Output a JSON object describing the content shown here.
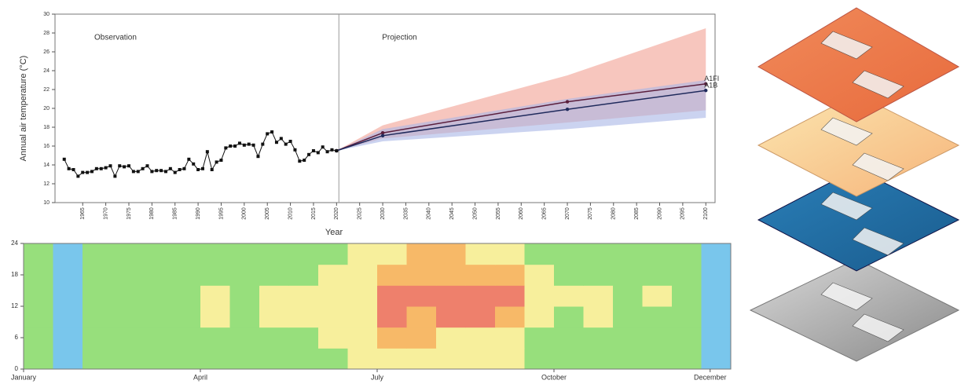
{
  "chart_data": [
    {
      "type": "line",
      "y_label": "Annual air temperature (°C)",
      "x_label": "Year",
      "annotations": [
        "Observation",
        "Projection"
      ],
      "color": "#111111",
      "x": [
        1961,
        1962,
        1963,
        1964,
        1965,
        1966,
        1967,
        1968,
        1969,
        1970,
        1971,
        1972,
        1973,
        1974,
        1975,
        1976,
        1977,
        1978,
        1979,
        1980,
        1981,
        1982,
        1983,
        1984,
        1985,
        1986,
        1987,
        1988,
        1989,
        1990,
        1991,
        1992,
        1993,
        1994,
        1995,
        1996,
        1997,
        1998,
        1999,
        2000,
        2001,
        2002,
        2003,
        2004,
        2005,
        2006,
        2007,
        2008,
        2009,
        2010,
        2011,
        2012,
        2013,
        2014,
        2015,
        2016,
        2017,
        2018,
        2019,
        2020
      ],
      "values": [
        14.6,
        13.6,
        13.5,
        12.8,
        13.2,
        13.2,
        13.3,
        13.6,
        13.6,
        13.7,
        13.9,
        12.8,
        13.9,
        13.8,
        13.9,
        13.3,
        13.3,
        13.6,
        13.9,
        13.3,
        13.4,
        13.4,
        13.3,
        13.6,
        13.2,
        13.5,
        13.6,
        14.6,
        14.1,
        13.5,
        13.6,
        15.4,
        13.5,
        14.3,
        14.5,
        15.8,
        16.0,
        16.0,
        16.3,
        16.1,
        16.2,
        16.1,
        14.9,
        16.2,
        17.3,
        17.5,
        16.4,
        16.8,
        16.2,
        16.5,
        15.6,
        14.4,
        14.5,
        15.1,
        15.5,
        15.3,
        15.9,
        15.4,
        15.6,
        15.5
      ],
      "series": [
        {
          "name": "A1FI",
          "color": "#5a1e3c",
          "band_color": "#f2a092",
          "x": [
            2020,
            2030,
            2070,
            2100
          ],
          "values": [
            15.5,
            17.4,
            20.7,
            22.6
          ],
          "lower": [
            15.5,
            16.8,
            18.5,
            19.8
          ],
          "upper": [
            15.5,
            18.2,
            23.5,
            28.5
          ]
        },
        {
          "name": "A1B",
          "color": "#1f2a5c",
          "band_color": "#a8b6e6",
          "x": [
            2020,
            2030,
            2070,
            2100
          ],
          "values": [
            15.5,
            17.1,
            19.9,
            21.9
          ],
          "lower": [
            15.5,
            16.5,
            17.8,
            19.0
          ],
          "upper": [
            15.5,
            17.8,
            21.0,
            23.0
          ]
        }
      ],
      "xlim": [
        1959,
        2102
      ],
      "xticks": [
        1965,
        1970,
        1975,
        1980,
        1985,
        1990,
        1995,
        2000,
        2005,
        2010,
        2015,
        2020,
        2025,
        2030,
        2035,
        2040,
        2045,
        2050,
        2055,
        2060,
        2065,
        2070,
        2075,
        2080,
        2085,
        2090,
        2095,
        2100
      ],
      "ylim": [
        10,
        30
      ],
      "yticks": [
        10,
        12,
        14,
        16,
        18,
        20,
        22,
        24,
        26,
        28,
        30
      ]
    },
    {
      "type": "heatmap",
      "colors": [
        "#79c6ec",
        "#97df7c",
        "#f7ef9c",
        "#f7b968",
        "#ee806c"
      ],
      "values": [
        [
          1,
          0,
          1,
          1,
          1,
          1,
          1,
          1,
          1,
          1,
          1,
          2,
          2,
          2,
          2,
          2,
          2,
          1,
          1,
          1,
          1,
          1,
          1,
          0
        ],
        [
          1,
          0,
          1,
          1,
          1,
          1,
          1,
          1,
          1,
          1,
          2,
          2,
          3,
          3,
          2,
          2,
          2,
          1,
          1,
          1,
          1,
          1,
          1,
          0
        ],
        [
          1,
          0,
          1,
          1,
          1,
          1,
          2,
          1,
          2,
          2,
          2,
          2,
          4,
          3,
          4,
          4,
          3,
          2,
          1,
          2,
          1,
          1,
          1,
          0
        ],
        [
          1,
          0,
          1,
          1,
          1,
          1,
          2,
          1,
          2,
          2,
          2,
          2,
          4,
          4,
          4,
          4,
          4,
          2,
          2,
          2,
          1,
          2,
          1,
          0
        ],
        [
          1,
          0,
          1,
          1,
          1,
          1,
          1,
          1,
          1,
          1,
          2,
          2,
          3,
          3,
          3,
          3,
          3,
          2,
          1,
          1,
          1,
          1,
          1,
          0
        ],
        [
          1,
          0,
          1,
          1,
          1,
          1,
          1,
          1,
          1,
          1,
          1,
          2,
          2,
          3,
          3,
          2,
          2,
          1,
          1,
          1,
          1,
          1,
          1,
          0
        ]
      ],
      "xlim": [
        0,
        24
      ],
      "xticks": [
        {
          "value": 0,
          "label": "January"
        },
        {
          "value": 6,
          "label": "April"
        },
        {
          "value": 12,
          "label": "July"
        },
        {
          "value": 18,
          "label": "October"
        },
        {
          "value": 23.3,
          "label": "December"
        }
      ],
      "ylim": [
        0,
        24
      ],
      "yticks": [
        0,
        6,
        12,
        18,
        24
      ]
    }
  ]
}
